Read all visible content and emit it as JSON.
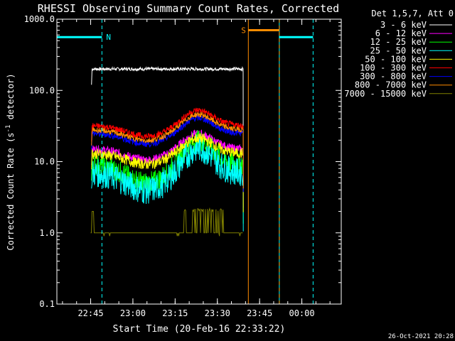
{
  "chart_data": {
    "type": "line",
    "title": "RHESSI Observing Summary Count Rates, Corrected",
    "xlabel": "Start Time (20-Feb-16 22:33:22)",
    "ylabel_main": "Corrected Count Rate (s",
    "ylabel_sup": "-1",
    "ylabel_tail": " detector",
    "ylabel_end": ")",
    "y_scale": "log",
    "ylim": [
      0.1,
      1000
    ],
    "y_ticks": [
      {
        "value": 0.1,
        "label": "0.1"
      },
      {
        "value": 1,
        "label": "1.0"
      },
      {
        "value": 10,
        "label": "10.0"
      },
      {
        "value": 100,
        "label": "100.0"
      },
      {
        "value": 1000,
        "label": "1000.0"
      }
    ],
    "xlim_minutes": [
      0,
      101
    ],
    "x_ticks": [
      {
        "minute": 12,
        "label": "22:45"
      },
      {
        "minute": 27,
        "label": "23:00"
      },
      {
        "minute": 42,
        "label": "23:15"
      },
      {
        "minute": 57,
        "label": "23:30"
      },
      {
        "minute": 72,
        "label": "23:45"
      },
      {
        "minute": 87,
        "label": "00:00"
      }
    ],
    "legend": {
      "position": "top-right",
      "header": "Det 1,5,7, Att 0"
    },
    "series": [
      {
        "name": "3 - 6 keV",
        "color": "#ffffff",
        "level": 200,
        "noise": 0.015
      },
      {
        "name": "6 - 12 keV",
        "color": "#ff00ff",
        "level": 15,
        "noise": 0.04
      },
      {
        "name": "12 - 25 keV",
        "color": "#00ff00",
        "level": 9,
        "noise": 0.07
      },
      {
        "name": "25 - 50 keV",
        "color": "#00ffff",
        "level": 7,
        "noise": 0.09
      },
      {
        "name": "50 - 100 keV",
        "color": "#ffff00",
        "level": 13,
        "noise": 0.05
      },
      {
        "name": "100 - 300 keV",
        "color": "#ff0000",
        "level": 32,
        "noise": 0.03
      },
      {
        "name": "300 - 800 keV",
        "color": "#0000ff",
        "level": 25,
        "noise": 0.03
      },
      {
        "name": "800 - 7000 keV",
        "color": "#ff8c00",
        "level": 28,
        "noise": 0.025
      },
      {
        "name": "7000 - 15000 keV",
        "color": "#808000",
        "level": 1,
        "noise": 0
      }
    ],
    "data_window_minutes": [
      12,
      66
    ],
    "flags": [
      {
        "label": "N",
        "color": "#00ffff",
        "start": 0,
        "end": 16,
        "level": 560,
        "vline_solid": 0,
        "vline_dashed": 16
      },
      {
        "label": "",
        "color": "#00ffff",
        "start": 79,
        "end": 91,
        "level": 560,
        "vline_solid": 79,
        "vline_dashed": 91
      },
      {
        "label": "S",
        "color": "#ff8c00",
        "start": 68,
        "end": 79,
        "level": 700,
        "vline_solid": 68,
        "vline_dashed": 79
      }
    ]
  },
  "footer_date": "26-Oct-2021 20:28"
}
